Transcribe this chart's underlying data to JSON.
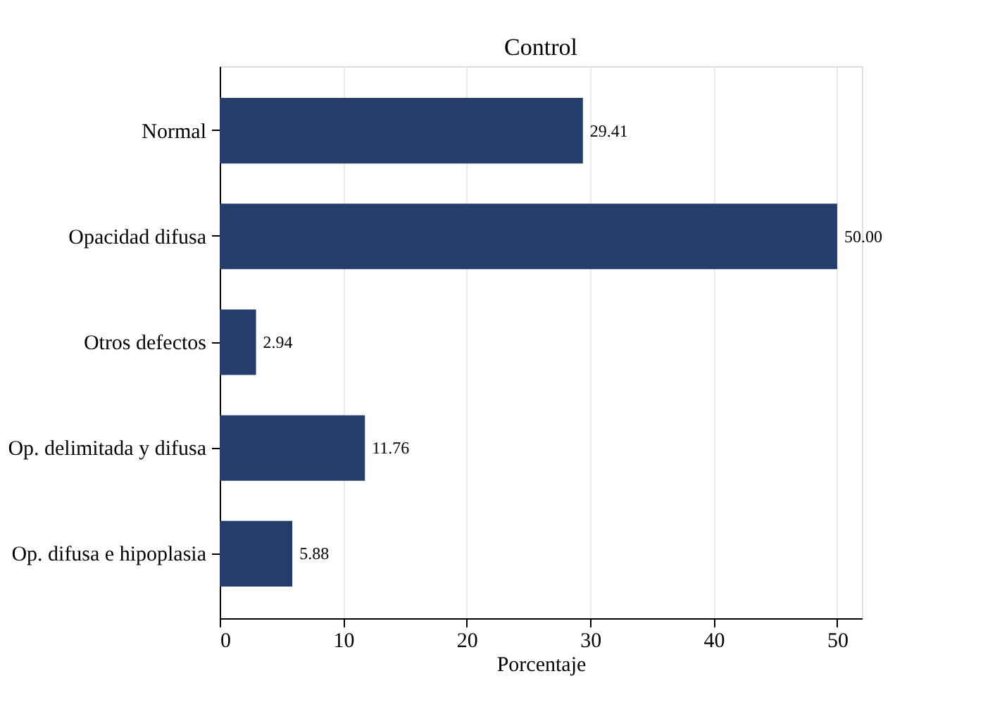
{
  "chart_data": {
    "type": "bar",
    "orientation": "horizontal",
    "title": "Control",
    "xlabel": "Porcentaje",
    "categories": [
      "Normal",
      "Opacidad difusa",
      "Otros defectos",
      "Op. delimitada y difusa",
      "Op. difusa e hipoplasia"
    ],
    "values": [
      29.41,
      50.0,
      2.94,
      11.76,
      5.88
    ],
    "value_labels": [
      "29.41",
      "50.00",
      "2.94",
      "11.76",
      "5.88"
    ],
    "color": "#253d6b",
    "xlim": [
      0,
      52
    ],
    "xticks": [
      0,
      10,
      20,
      30,
      40,
      50
    ],
    "grid": "x"
  }
}
